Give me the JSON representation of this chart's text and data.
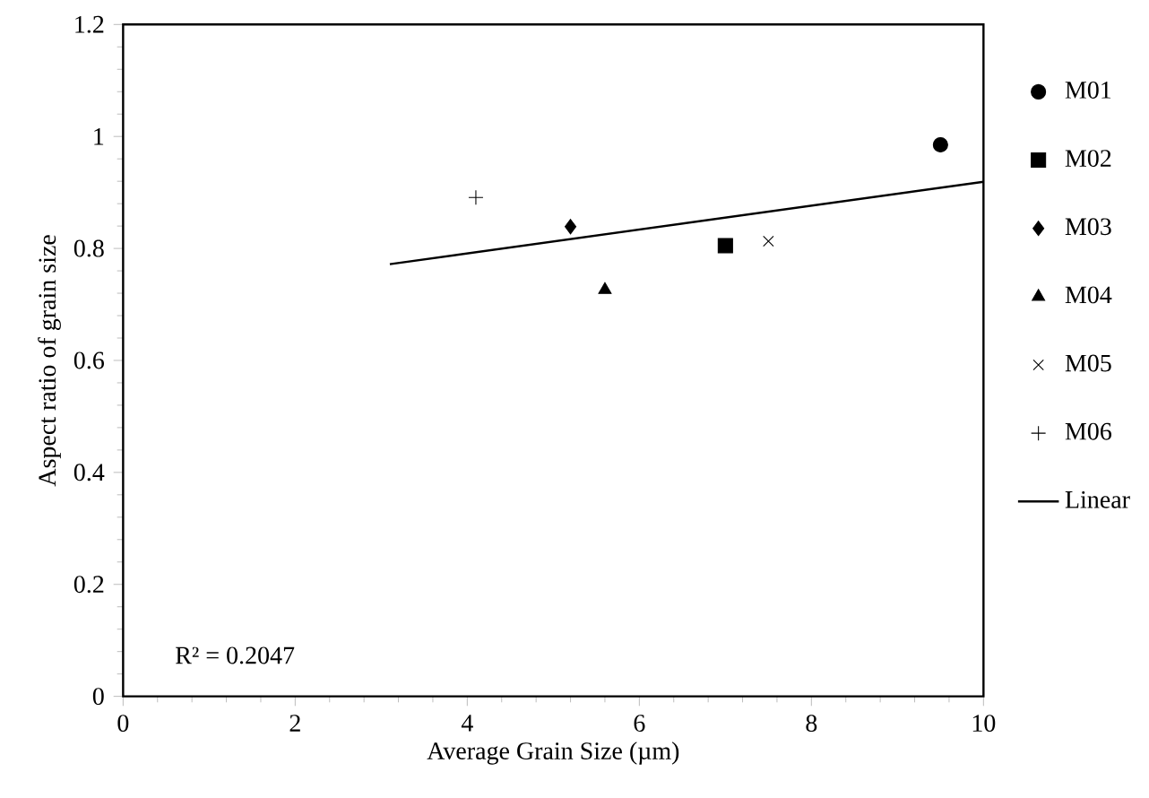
{
  "chart_data": {
    "type": "scatter",
    "xlabel": "Average Grain Size (µm)",
    "ylabel": "Aspect ratio of grain size",
    "xlim": [
      0,
      10
    ],
    "ylim": [
      0,
      1.2
    ],
    "xticks": [
      0,
      2,
      4,
      6,
      8,
      10
    ],
    "yticks": [
      0,
      0.2,
      0.4,
      0.6,
      0.8,
      1,
      1.2
    ],
    "legend": "right",
    "grid": false,
    "series": [
      {
        "name": "M01",
        "color": "#000000",
        "marker": "circle",
        "x": [
          9.5
        ],
        "values": [
          0.985
        ]
      },
      {
        "name": "M02",
        "color": "#000000",
        "marker": "square",
        "x": [
          7.0
        ],
        "values": [
          0.805
        ]
      },
      {
        "name": "M03",
        "color": "#000000",
        "marker": "diamond",
        "x": [
          5.2
        ],
        "values": [
          0.839
        ]
      },
      {
        "name": "M04",
        "color": "#000000",
        "marker": "triangle",
        "x": [
          5.6
        ],
        "values": [
          0.726
        ]
      },
      {
        "name": "M05",
        "color": "#000000",
        "marker": "cross",
        "x": [
          7.5
        ],
        "values": [
          0.813
        ]
      },
      {
        "name": "M06",
        "color": "#000000",
        "marker": "plus",
        "x": [
          4.1
        ],
        "values": [
          0.891
        ]
      },
      {
        "name": "Linear",
        "type": "line",
        "color": "#000000",
        "marker": "none",
        "line_style": "solid",
        "x": [
          3.1,
          10
        ],
        "values": [
          0.772,
          0.919
        ]
      }
    ],
    "annotations": [
      "R² = 0.2047"
    ]
  }
}
